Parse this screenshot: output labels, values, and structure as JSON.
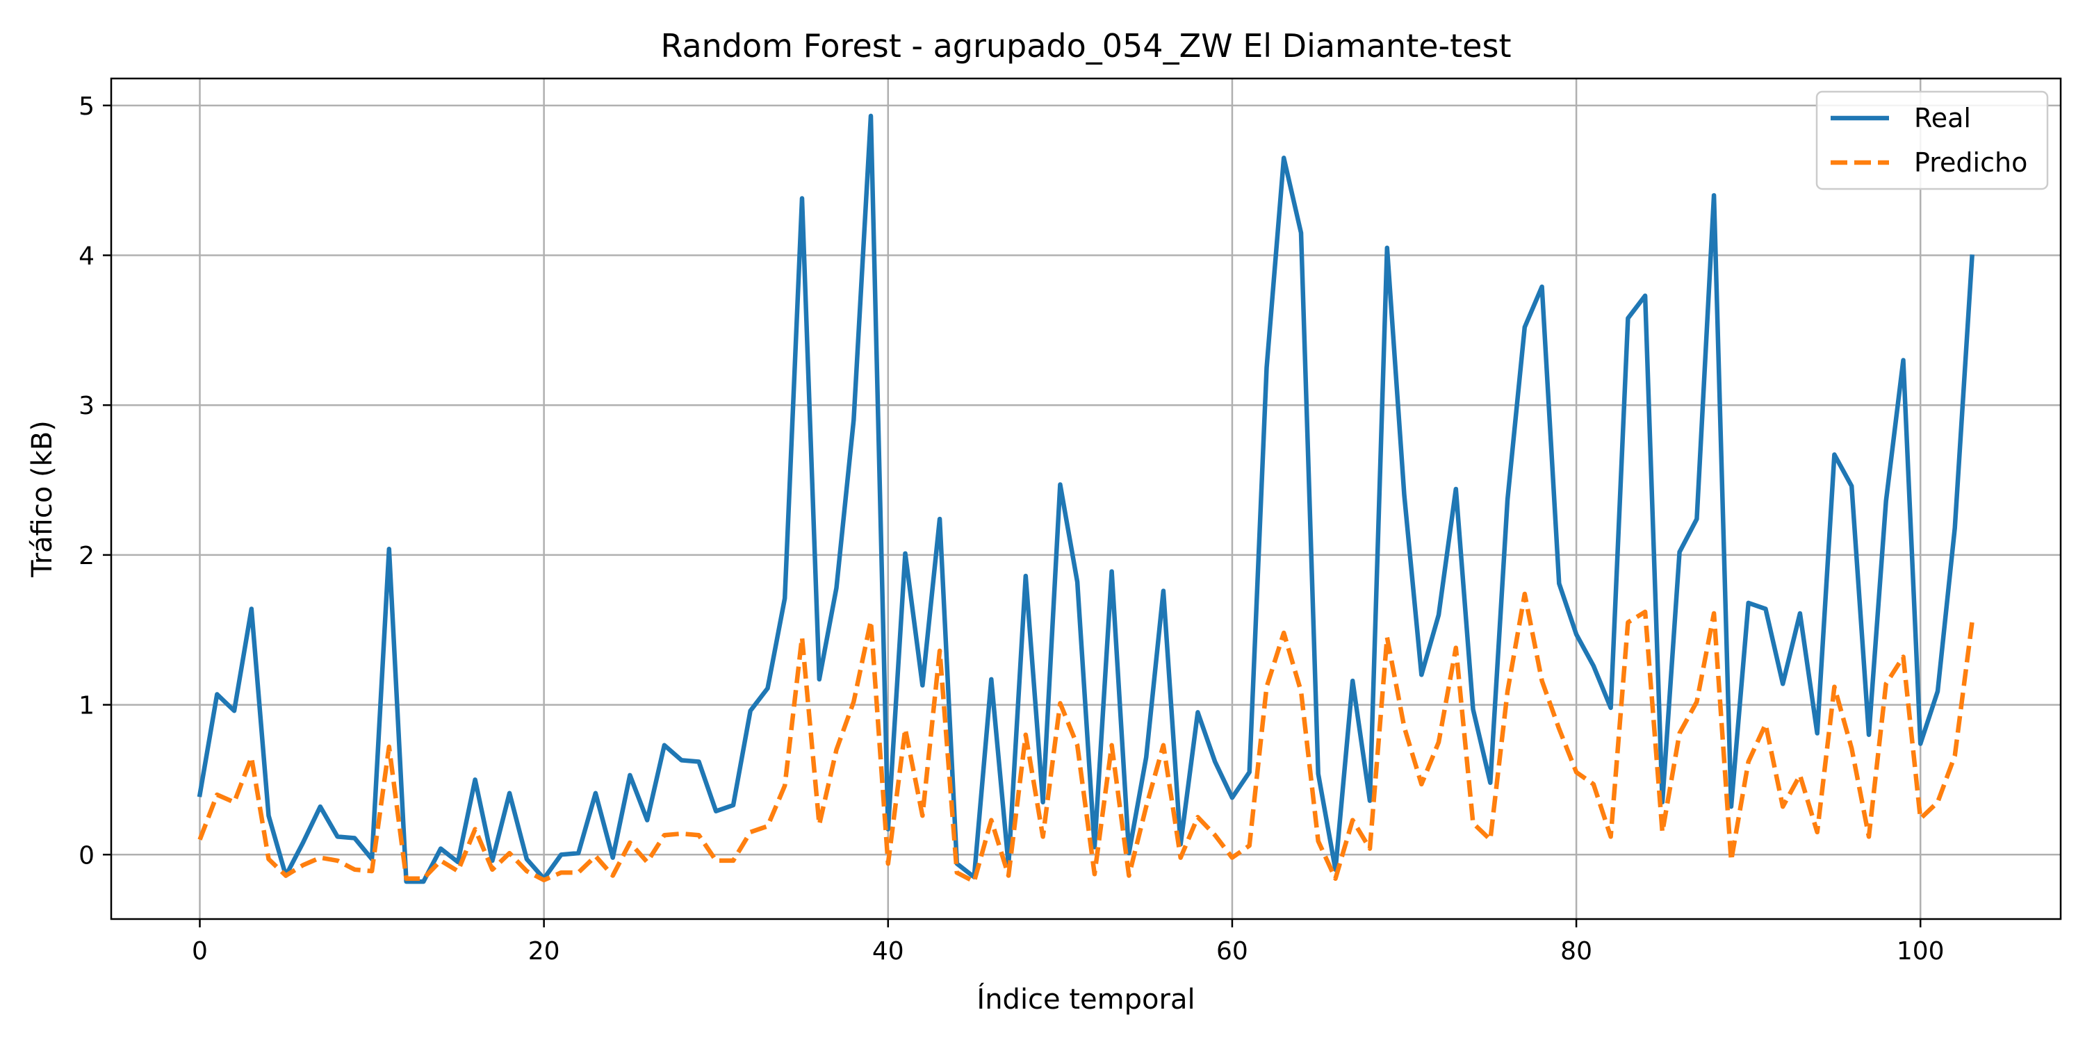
{
  "chart_data": {
    "type": "line",
    "title": "Random Forest - agrupado_054_ZW El Diamante-test",
    "xlabel": "Índice temporal",
    "ylabel": "Tráfico (kB)",
    "xlim": [
      -5.15,
      108.15
    ],
    "ylim": [
      -0.43,
      5.18
    ],
    "xticks": [
      0,
      20,
      40,
      60,
      80,
      100
    ],
    "yticks": [
      0,
      1,
      2,
      3,
      4,
      5
    ],
    "grid": true,
    "legend_position": "top-right",
    "series": [
      {
        "name": "Real",
        "color": "#1f77b4",
        "style": "solid",
        "x": [
          0,
          1,
          2,
          3,
          4,
          5,
          6,
          7,
          8,
          9,
          10,
          11,
          12,
          13,
          14,
          15,
          16,
          17,
          18,
          19,
          20,
          21,
          22,
          23,
          24,
          25,
          26,
          27,
          28,
          29,
          30,
          31,
          32,
          33,
          34,
          35,
          36,
          37,
          38,
          39,
          40,
          41,
          42,
          43,
          44,
          45,
          46,
          47,
          48,
          49,
          50,
          51,
          52,
          53,
          54,
          55,
          56,
          57,
          58,
          59,
          60,
          61,
          62,
          63,
          64,
          65,
          66,
          67,
          68,
          69,
          70,
          71,
          72,
          73,
          74,
          75,
          76,
          77,
          78,
          79,
          80,
          81,
          82,
          83,
          84,
          85,
          86,
          87,
          88,
          89,
          90,
          91,
          92,
          93,
          94,
          95,
          96,
          97,
          98,
          99,
          100,
          101,
          102,
          103
        ],
        "values": [
          0.4,
          1.07,
          0.96,
          1.64,
          0.26,
          -0.14,
          0.08,
          0.32,
          0.12,
          0.11,
          -0.03,
          2.04,
          -0.18,
          -0.18,
          0.04,
          -0.05,
          0.5,
          -0.04,
          0.41,
          -0.03,
          -0.16,
          0.0,
          0.01,
          0.41,
          -0.02,
          0.53,
          0.23,
          0.73,
          0.63,
          0.62,
          0.29,
          0.33,
          0.96,
          1.11,
          1.71,
          4.38,
          1.17,
          1.78,
          2.9,
          4.93,
          0.17,
          2.01,
          1.13,
          2.24,
          -0.06,
          -0.15,
          1.17,
          -0.07,
          1.86,
          0.35,
          2.47,
          1.82,
          0.05,
          1.89,
          0.01,
          0.65,
          1.76,
          0.07,
          0.95,
          0.62,
          0.38,
          0.55,
          3.25,
          4.65,
          4.15,
          0.54,
          -0.1,
          1.16,
          0.36,
          4.05,
          2.4,
          1.2,
          1.6,
          2.44,
          0.97,
          0.48,
          2.37,
          3.52,
          3.79,
          1.81,
          1.47,
          1.26,
          0.98,
          3.58,
          3.73,
          0.35,
          2.02,
          2.24,
          4.4,
          0.32,
          1.68,
          1.64,
          1.14,
          1.61,
          0.81,
          2.67,
          2.46,
          0.8,
          2.36,
          3.3,
          0.74,
          1.09,
          2.18,
          3.99
        ]
      },
      {
        "name": "Predicho",
        "color": "#ff7f0e",
        "style": "dashed",
        "x": [
          0,
          1,
          2,
          3,
          4,
          5,
          6,
          7,
          8,
          9,
          10,
          11,
          12,
          13,
          14,
          15,
          16,
          17,
          18,
          19,
          20,
          21,
          22,
          23,
          24,
          25,
          26,
          27,
          28,
          29,
          30,
          31,
          32,
          33,
          34,
          35,
          36,
          37,
          38,
          39,
          40,
          41,
          42,
          43,
          44,
          45,
          46,
          47,
          48,
          49,
          50,
          51,
          52,
          53,
          54,
          55,
          56,
          57,
          58,
          59,
          60,
          61,
          62,
          63,
          64,
          65,
          66,
          67,
          68,
          69,
          70,
          71,
          72,
          73,
          74,
          75,
          76,
          77,
          78,
          79,
          80,
          81,
          82,
          83,
          84,
          85,
          86,
          87,
          88,
          89,
          90,
          91,
          92,
          93,
          94,
          95,
          96,
          97,
          98,
          99,
          100,
          101,
          102,
          103
        ],
        "values": [
          0.1,
          0.4,
          0.35,
          0.65,
          -0.03,
          -0.14,
          -0.07,
          -0.02,
          -0.04,
          -0.1,
          -0.11,
          0.72,
          -0.16,
          -0.16,
          -0.04,
          -0.11,
          0.17,
          -0.1,
          0.01,
          -0.11,
          -0.17,
          -0.12,
          -0.12,
          -0.01,
          -0.14,
          0.08,
          -0.05,
          0.13,
          0.14,
          0.13,
          -0.04,
          -0.04,
          0.15,
          0.19,
          0.46,
          1.45,
          0.2,
          0.7,
          1.02,
          1.56,
          -0.06,
          0.84,
          0.26,
          1.36,
          -0.12,
          -0.18,
          0.23,
          -0.14,
          0.8,
          0.12,
          1.01,
          0.73,
          -0.13,
          0.73,
          -0.14,
          0.32,
          0.73,
          -0.02,
          0.25,
          0.13,
          -0.02,
          0.06,
          1.12,
          1.48,
          1.09,
          0.09,
          -0.16,
          0.23,
          0.04,
          1.45,
          0.85,
          0.47,
          0.75,
          1.38,
          0.21,
          0.1,
          1.09,
          1.74,
          1.16,
          0.84,
          0.55,
          0.47,
          0.12,
          1.55,
          1.62,
          0.15,
          0.81,
          1.02,
          1.61,
          -0.04,
          0.62,
          0.87,
          0.32,
          0.53,
          0.15,
          1.12,
          0.71,
          0.12,
          1.14,
          1.32,
          0.24,
          0.35,
          0.66,
          1.55
        ]
      }
    ]
  }
}
